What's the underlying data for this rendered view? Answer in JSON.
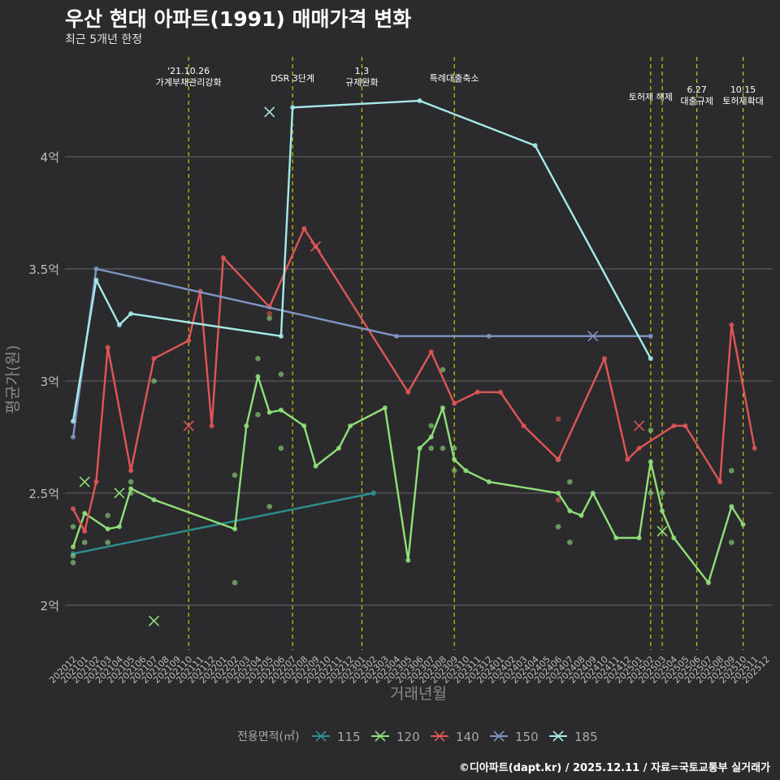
{
  "title": "우산 현대 아파트(1991) 매매가격 변화",
  "subtitle": "최근 5개년 한정",
  "credit": "©디아파트(dapt.kr) / 2025.12.11 / 자료=국토교통부 실거래가",
  "chart_data": {
    "type": "line",
    "xlabel": "거래년월",
    "ylabel": "평균가(원)",
    "ylim": [
      1.8,
      4.5
    ],
    "ytick_values": [
      2,
      2.5,
      3,
      3.5,
      4
    ],
    "ytick_labels": [
      "2억",
      "2.5억",
      "3억",
      "3.5억",
      "4억"
    ],
    "x_categories": [
      "202012",
      "202101",
      "202102",
      "202103",
      "202104",
      "202105",
      "202106",
      "202107",
      "202108",
      "202109",
      "202110",
      "202111",
      "202112",
      "202201",
      "202202",
      "202203",
      "202204",
      "202205",
      "202206",
      "202207",
      "202208",
      "202209",
      "202210",
      "202211",
      "202212",
      "202301",
      "202302",
      "202303",
      "202304",
      "202305",
      "202306",
      "202307",
      "202308",
      "202309",
      "202310",
      "202311",
      "202312",
      "202401",
      "202402",
      "202403",
      "202404",
      "202405",
      "202406",
      "202407",
      "202408",
      "202409",
      "202410",
      "202411",
      "202412",
      "202501",
      "202502",
      "202503",
      "202504",
      "202505",
      "202506",
      "202507",
      "202508",
      "202509",
      "202510",
      "202511",
      "202512"
    ],
    "legend_title": "전용면적(㎡)",
    "series": [
      {
        "name": "115",
        "color": "#2f8f8f",
        "line": [
          [
            "202012",
            2.23
          ],
          [
            "202302",
            2.5
          ]
        ],
        "points": [
          [
            "202302",
            2.5
          ]
        ],
        "crosses": []
      },
      {
        "name": "120",
        "color": "#90e07a",
        "line": [
          [
            "202012",
            2.26
          ],
          [
            "202101",
            2.41
          ],
          [
            "202103",
            2.34
          ],
          [
            "202104",
            2.35
          ],
          [
            "202105",
            2.52
          ],
          [
            "202107",
            2.47
          ],
          [
            "202202",
            2.34
          ],
          [
            "202203",
            2.8
          ],
          [
            "202204",
            3.02
          ],
          [
            "202205",
            2.86
          ],
          [
            "202206",
            2.87
          ],
          [
            "202208",
            2.8
          ],
          [
            "202209",
            2.62
          ],
          [
            "202211",
            2.7
          ],
          [
            "202212",
            2.8
          ],
          [
            "202303",
            2.88
          ],
          [
            "202305",
            2.2
          ],
          [
            "202306",
            2.7
          ],
          [
            "202307",
            2.75
          ],
          [
            "202308",
            2.88
          ],
          [
            "202309",
            2.65
          ],
          [
            "202310",
            2.6
          ],
          [
            "202312",
            2.55
          ],
          [
            "202406",
            2.5
          ],
          [
            "202407",
            2.42
          ],
          [
            "202408",
            2.4
          ],
          [
            "202409",
            2.5
          ],
          [
            "202411",
            2.3
          ],
          [
            "202501",
            2.3
          ],
          [
            "202502",
            2.64
          ],
          [
            "202503",
            2.42
          ],
          [
            "202504",
            2.3
          ],
          [
            "202507",
            2.1
          ],
          [
            "202509",
            2.44
          ],
          [
            "202510",
            2.36
          ]
        ],
        "points": [
          [
            "202012",
            2.19
          ],
          [
            "202012",
            2.22
          ],
          [
            "202012",
            2.35
          ],
          [
            "202101",
            2.28
          ],
          [
            "202103",
            2.4
          ],
          [
            "202103",
            2.28
          ],
          [
            "202105",
            2.5
          ],
          [
            "202105",
            2.55
          ],
          [
            "202107",
            3.0
          ],
          [
            "202202",
            2.1
          ],
          [
            "202202",
            2.58
          ],
          [
            "202204",
            2.85
          ],
          [
            "202204",
            3.1
          ],
          [
            "202205",
            2.44
          ],
          [
            "202205",
            3.28
          ],
          [
            "202206",
            2.7
          ],
          [
            "202206",
            3.03
          ],
          [
            "202307",
            2.8
          ],
          [
            "202307",
            2.7
          ],
          [
            "202308",
            3.05
          ],
          [
            "202308",
            2.7
          ],
          [
            "202309",
            2.7
          ],
          [
            "202309",
            2.6
          ],
          [
            "202406",
            2.65
          ],
          [
            "202406",
            2.35
          ],
          [
            "202407",
            2.55
          ],
          [
            "202407",
            2.28
          ],
          [
            "202502",
            2.78
          ],
          [
            "202502",
            2.5
          ],
          [
            "202503",
            2.5
          ],
          [
            "202509",
            2.6
          ],
          [
            "202509",
            2.28
          ]
        ],
        "crosses": [
          [
            "202101",
            2.55
          ],
          [
            "202104",
            2.5
          ],
          [
            "202107",
            1.93
          ],
          [
            "202503",
            2.33
          ]
        ]
      },
      {
        "name": "140",
        "color": "#e05555",
        "line": [
          [
            "202012",
            2.43
          ],
          [
            "202101",
            2.33
          ],
          [
            "202102",
            2.55
          ],
          [
            "202103",
            3.15
          ],
          [
            "202105",
            2.6
          ],
          [
            "202107",
            3.1
          ],
          [
            "202110",
            3.18
          ],
          [
            "202111",
            3.4
          ],
          [
            "202112",
            2.8
          ],
          [
            "202201",
            3.55
          ],
          [
            "202205",
            3.33
          ],
          [
            "202208",
            3.68
          ],
          [
            "202209",
            3.6
          ],
          [
            "202305",
            2.95
          ],
          [
            "202307",
            3.13
          ],
          [
            "202309",
            2.9
          ],
          [
            "202311",
            2.95
          ],
          [
            "202401",
            2.95
          ],
          [
            "202403",
            2.8
          ],
          [
            "202406",
            2.65
          ],
          [
            "202410",
            3.1
          ],
          [
            "202412",
            2.65
          ],
          [
            "202501",
            2.7
          ],
          [
            "202504",
            2.8
          ],
          [
            "202505",
            2.8
          ],
          [
            "202508",
            2.55
          ],
          [
            "202509",
            3.25
          ],
          [
            "202511",
            2.7
          ]
        ],
        "points": [
          [
            "202205",
            3.3
          ],
          [
            "202406",
            2.83
          ],
          [
            "202406",
            2.47
          ]
        ],
        "crosses": [
          [
            "202110",
            2.8
          ],
          [
            "202209",
            3.6
          ],
          [
            "202501",
            2.8
          ]
        ]
      },
      {
        "name": "150",
        "color": "#7f95c4",
        "line": [
          [
            "202012",
            2.75
          ],
          [
            "202102",
            3.5
          ],
          [
            "202304",
            3.2
          ],
          [
            "202312",
            3.2
          ],
          [
            "202502",
            3.2
          ]
        ],
        "points": [],
        "crosses": [
          [
            "202409",
            3.2
          ]
        ]
      },
      {
        "name": "185",
        "color": "#a6e9e9",
        "line": [
          [
            "202012",
            2.82
          ],
          [
            "202102",
            3.45
          ],
          [
            "202104",
            3.25
          ],
          [
            "202105",
            3.3
          ],
          [
            "202206",
            3.2
          ],
          [
            "202207",
            4.22
          ],
          [
            "202306",
            4.25
          ],
          [
            "202404",
            4.05
          ],
          [
            "202502",
            3.1
          ]
        ],
        "points": [],
        "crosses": [
          [
            "202205",
            4.2
          ]
        ]
      }
    ],
    "policy_lines": [
      {
        "month": "202110",
        "label": "'21.10.26\n가계부채관리강화",
        "level": 0
      },
      {
        "month": "202207",
        "label": "DSR 3단계",
        "level": 2
      },
      {
        "month": "202301",
        "label": "1.3\n규제완화",
        "level": 0
      },
      {
        "month": "202309",
        "label": "특례대출축소",
        "level": 2
      },
      {
        "month": "202502",
        "label": "토허제 해제",
        "level": 1
      },
      {
        "month": "202503",
        "label": "",
        "level": 1
      },
      {
        "month": "202506",
        "label": "6.27\n대출규제",
        "level": 3
      },
      {
        "month": "202510",
        "label": "10.15\n토허제확대",
        "level": 3
      }
    ]
  }
}
